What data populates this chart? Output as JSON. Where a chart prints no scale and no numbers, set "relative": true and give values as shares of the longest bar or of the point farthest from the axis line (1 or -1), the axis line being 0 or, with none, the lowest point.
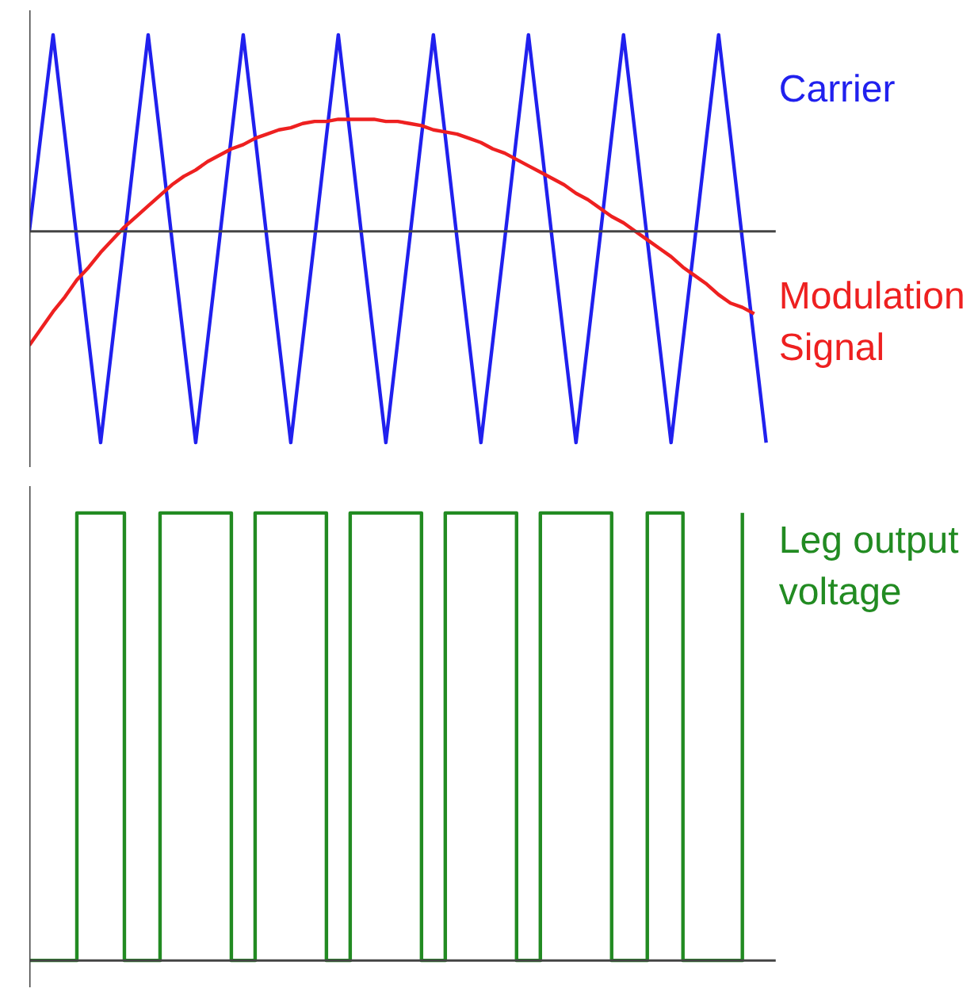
{
  "chart_data": [
    {
      "type": "line",
      "relative": true,
      "tick_labels": false,
      "grid": false,
      "marker": "none",
      "line_style": "solid",
      "categories": [
        null,
        null,
        null,
        null,
        null,
        null,
        null,
        null,
        null,
        null,
        null,
        null,
        null,
        null,
        null,
        null,
        null,
        null,
        null,
        null,
        null,
        null,
        null,
        null,
        null,
        null,
        null,
        null,
        null,
        null,
        null,
        null,
        null,
        null,
        null,
        null,
        null,
        null,
        null,
        null,
        null,
        null,
        null,
        null,
        null,
        null,
        null,
        null,
        null,
        null,
        null,
        null,
        null,
        null,
        null,
        null,
        null,
        null,
        null,
        null,
        null,
        null,
        null
      ],
      "series": [
        {
          "name": "Carrier",
          "color": "#2020ee",
          "values": [
            0,
            0.47,
            0.93,
            0.45,
            -0.04,
            -0.52,
            -1,
            -0.52,
            -0.04,
            0.45,
            0.93,
            0.45,
            -0.04,
            -0.52,
            -1,
            -0.52,
            -0.04,
            0.45,
            0.93,
            0.45,
            -0.04,
            -0.52,
            -1,
            -0.52,
            -0.04,
            0.45,
            0.93,
            0.45,
            -0.04,
            -0.52,
            -1,
            -0.52,
            -0.04,
            0.45,
            0.93,
            0.45,
            -0.04,
            -0.52,
            -1,
            -0.52,
            -0.04,
            0.45,
            0.93,
            0.45,
            -0.04,
            -0.52,
            -1,
            -0.52,
            -0.04,
            0.45,
            0.93,
            0.45,
            -0.04,
            -0.52,
            -1,
            -0.52,
            -0.04,
            0.45,
            0.93,
            0.45,
            -0.04,
            -0.52,
            -1
          ]
        },
        {
          "name": "Modulation\nSignal",
          "color": "#ee2020",
          "values": [
            -0.54,
            -0.46,
            -0.38,
            -0.31,
            -0.23,
            -0.17,
            -0.1,
            -0.04,
            0.02,
            0.07,
            0.12,
            0.17,
            0.22,
            0.26,
            0.29,
            0.33,
            0.36,
            0.39,
            0.41,
            0.44,
            0.46,
            0.48,
            0.49,
            0.51,
            0.52,
            0.52,
            0.53,
            0.53,
            0.53,
            0.53,
            0.52,
            0.52,
            0.51,
            0.5,
            0.48,
            0.47,
            0.46,
            0.44,
            0.42,
            0.39,
            0.37,
            0.34,
            0.31,
            0.28,
            0.25,
            0.22,
            0.18,
            0.15,
            0.11,
            0.07,
            0.04,
            0,
            -0.04,
            -0.08,
            -0.12,
            -0.17,
            -0.21,
            -0.25,
            -0.3,
            -0.34,
            -0.36,
            -0.39,
            null
          ]
        }
      ]
    },
    {
      "type": "step",
      "relative": true,
      "tick_labels": false,
      "grid": false,
      "marker": "none",
      "line_style": "solid",
      "categories": [
        null,
        null,
        null,
        null,
        null,
        null,
        null,
        null,
        null,
        null,
        null,
        null,
        null,
        null,
        null,
        null,
        null,
        null,
        null,
        null,
        null,
        null,
        null,
        null,
        null,
        null,
        null,
        null,
        null,
        null,
        null,
        null,
        null,
        null,
        null,
        null,
        null,
        null,
        null,
        null,
        null,
        null,
        null,
        null,
        null,
        null,
        null,
        null,
        null,
        null,
        null,
        null,
        null,
        null,
        null,
        null,
        null,
        null,
        null,
        null,
        null,
        null,
        null
      ],
      "series": [
        {
          "name": "Leg output\nvoltage",
          "color": "#228b22",
          "values": [
            0,
            0,
            0,
            0,
            1,
            1,
            1,
            1,
            0,
            0,
            0,
            1,
            1,
            1,
            1,
            1,
            1,
            0,
            0,
            1,
            1,
            1,
            1,
            1,
            1,
            0,
            0,
            1,
            1,
            1,
            1,
            1,
            1,
            0,
            0,
            1,
            1,
            1,
            1,
            1,
            1,
            0,
            0,
            1,
            1,
            1,
            1,
            1,
            1,
            0,
            0,
            0,
            1,
            1,
            1,
            0,
            0,
            0,
            0,
            0,
            1,
            null,
            null
          ]
        }
      ]
    }
  ]
}
